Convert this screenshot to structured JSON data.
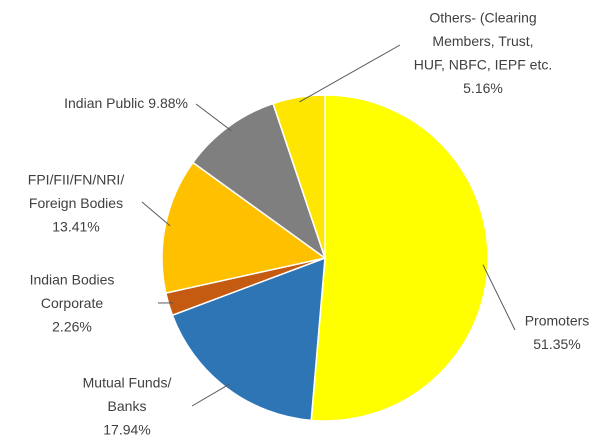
{
  "chart_data": {
    "type": "pie",
    "categories": [
      [
        "Promoters"
      ],
      [
        "Mutual Funds/",
        "Banks"
      ],
      [
        "Indian Bodies",
        "Corporate"
      ],
      [
        "FPI/FII/FN/NRI/",
        "Foreign Bodies"
      ],
      [
        "Indian Public"
      ],
      [
        "Others- (Clearing",
        "Members, Trust,",
        "HUF, NBFC, IEPF etc."
      ]
    ],
    "values": [
      51.35,
      17.94,
      2.26,
      13.41,
      9.88,
      5.16
    ],
    "value_labels": [
      "51.35%",
      "17.94%",
      "2.26%",
      "13.41%",
      "9.88%",
      "5.16%"
    ],
    "colors": [
      "#ffff00",
      "#2e75b6",
      "#c55a11",
      "#ffc000",
      "#7f7f7f",
      "#ffe600"
    ]
  }
}
